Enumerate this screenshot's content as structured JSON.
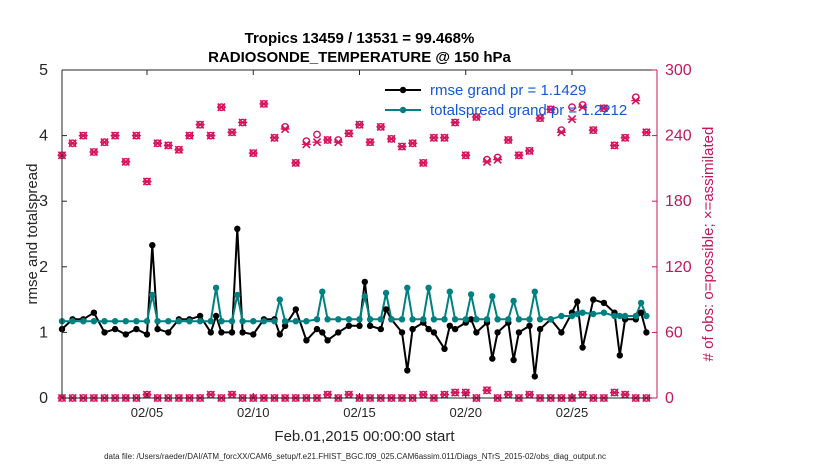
{
  "chart_data": {
    "type": "line",
    "title_line1": "Tropics 13459 / 13531 = 99.468%",
    "title_line2": "RADIOSONDE_TEMPERATURE @ 150 hPa",
    "xlabel": "Feb.01,2015 00:00:00 start",
    "ylabel_left": "rmse and totalspread",
    "ylabel_right": "# of obs: o=possible; ×=assimilated",
    "footer": "data file: /Users/raeder/DAI/ATM_forcXX/CAM6_setup/f.e21.FHIST_BGC.f09_025.CAM6assim.011/Diags_NTrS_2015-02/obs_diag_output.nc",
    "x_ticks": [
      {
        "label": "02/05",
        "day": 5
      },
      {
        "label": "02/10",
        "day": 10
      },
      {
        "label": "02/15",
        "day": 15
      },
      {
        "label": "02/20",
        "day": 20
      },
      {
        "label": "02/25",
        "day": 25
      }
    ],
    "xlim": [
      1,
      29
    ],
    "ylim_left": [
      0,
      5
    ],
    "y_ticks_left": [
      "0",
      "1",
      "2",
      "3",
      "4",
      "5"
    ],
    "ylim_right": [
      0,
      300
    ],
    "y_ticks_right": [
      "0",
      "60",
      "120",
      "180",
      "240",
      "300"
    ],
    "colors": {
      "rmse": "#000000",
      "spread": "#008080",
      "obs": "#d6105a",
      "legend_text": "#1457d6",
      "right_axis": "#c2185b"
    },
    "series": [
      {
        "name": "rmse grand pr = 1.1429",
        "axis": "left",
        "style": "line-dot",
        "x": [
          1,
          1.5,
          2,
          2.5,
          3,
          3.5,
          4,
          4.5,
          5,
          5.25,
          5.5,
          6,
          6.5,
          7,
          7.5,
          8,
          8.25,
          8.5,
          9,
          9.25,
          9.5,
          10,
          10.5,
          11,
          11.25,
          11.5,
          12,
          12.5,
          13,
          13.25,
          13.5,
          14,
          14.5,
          15,
          15.25,
          15.5,
          16,
          16.25,
          16.5,
          17,
          17.25,
          17.5,
          18,
          18.25,
          18.5,
          19,
          19.25,
          19.5,
          20,
          20.25,
          20.5,
          21,
          21.25,
          21.5,
          22,
          22.25,
          22.5,
          23,
          23.25,
          23.5,
          24,
          24.5,
          25,
          25.25,
          25.5,
          26,
          26.5,
          27,
          27.25,
          27.5,
          28,
          28.25,
          28.5
        ],
        "y": [
          1.05,
          1.2,
          1.2,
          1.3,
          1.0,
          1.05,
          0.97,
          1.05,
          0.97,
          2.33,
          1.05,
          1.0,
          1.2,
          1.2,
          1.25,
          1.0,
          1.25,
          1.0,
          1.0,
          2.58,
          1.0,
          0.97,
          1.2,
          1.2,
          0.97,
          1.1,
          1.35,
          0.88,
          1.05,
          1.0,
          0.88,
          1.0,
          1.1,
          1.1,
          1.77,
          1.1,
          1.05,
          1.35,
          1.2,
          1.0,
          0.42,
          1.05,
          1.15,
          1.05,
          1.0,
          0.75,
          1.1,
          1.05,
          1.15,
          1.2,
          1.0,
          1.15,
          0.6,
          1.0,
          1.15,
          0.58,
          1.0,
          1.1,
          0.33,
          1.05,
          1.2,
          1.0,
          1.3,
          1.47,
          0.77,
          1.5,
          1.45,
          1.3,
          0.65,
          1.2,
          1.2,
          1.3,
          1.0
        ]
      },
      {
        "name": "totalspread grand pr = 1.2212",
        "axis": "left",
        "style": "line-dot",
        "x": [
          1,
          1.5,
          2,
          2.5,
          3,
          3.5,
          4,
          4.5,
          5,
          5.25,
          5.5,
          6,
          6.5,
          7,
          7.5,
          8,
          8.25,
          8.5,
          9,
          9.25,
          9.5,
          10,
          10.5,
          11,
          11.25,
          11.5,
          12,
          12.5,
          13,
          13.25,
          13.5,
          14,
          14.5,
          15,
          15.25,
          15.5,
          16,
          16.25,
          16.5,
          17,
          17.25,
          17.5,
          18,
          18.25,
          18.5,
          19,
          19.25,
          19.5,
          20,
          20.25,
          20.5,
          21,
          21.25,
          21.5,
          22,
          22.25,
          22.5,
          23,
          23.25,
          23.5,
          24,
          24.5,
          25,
          25.25,
          25.5,
          26,
          26.5,
          27,
          27.25,
          27.5,
          28,
          28.25,
          28.5
        ],
        "y": [
          1.17,
          1.17,
          1.17,
          1.17,
          1.17,
          1.17,
          1.17,
          1.17,
          1.17,
          1.57,
          1.17,
          1.17,
          1.17,
          1.17,
          1.17,
          1.17,
          1.68,
          1.17,
          1.17,
          1.57,
          1.17,
          1.17,
          1.17,
          1.17,
          1.5,
          1.17,
          1.17,
          1.17,
          1.2,
          1.62,
          1.2,
          1.2,
          1.2,
          1.2,
          1.55,
          1.2,
          1.2,
          1.6,
          1.2,
          1.2,
          1.68,
          1.2,
          1.2,
          1.68,
          1.2,
          1.2,
          1.62,
          1.2,
          1.2,
          1.58,
          1.2,
          1.2,
          1.55,
          1.2,
          1.2,
          1.48,
          1.2,
          1.2,
          1.62,
          1.2,
          1.2,
          1.25,
          1.25,
          1.28,
          1.3,
          1.28,
          1.3,
          1.25,
          1.25,
          1.25,
          1.25,
          1.45,
          1.25
        ]
      },
      {
        "name": "obs possible",
        "axis": "right",
        "style": "marker-o",
        "x": [
          1,
          1.5,
          2,
          2.5,
          3,
          3.5,
          4,
          4.5,
          5,
          5.5,
          6,
          6.5,
          7,
          7.5,
          8,
          8.5,
          9,
          9.5,
          10,
          10.5,
          11,
          11.5,
          12,
          12.5,
          13,
          13.5,
          14,
          14.5,
          15,
          15.5,
          16,
          16.5,
          17,
          17.5,
          18,
          18.5,
          19,
          19.5,
          20,
          20.5,
          21,
          21.5,
          22,
          22.5,
          23,
          23.5,
          24,
          24.5,
          25,
          25.5,
          26,
          26.5,
          27,
          27.5,
          28,
          28.5
        ],
        "y": [
          222,
          233,
          240,
          225,
          234,
          240,
          216,
          240,
          198,
          233,
          231,
          227,
          240,
          250,
          240,
          266,
          243,
          252,
          224,
          269,
          238,
          248,
          215,
          235,
          241,
          236,
          236,
          242,
          250,
          234,
          248,
          237,
          230,
          233,
          215,
          238,
          238,
          252,
          222,
          257,
          218,
          220,
          236,
          222,
          226,
          256,
          264,
          245,
          266,
          268,
          245,
          265,
          231,
          238,
          275,
          243
        ]
      },
      {
        "name": "obs assimilated",
        "axis": "right",
        "style": "marker-x",
        "x": [
          1,
          1.5,
          2,
          2.5,
          3,
          3.5,
          4,
          4.5,
          5,
          5.5,
          6,
          6.5,
          7,
          7.5,
          8,
          8.5,
          9,
          9.5,
          10,
          10.5,
          11,
          11.5,
          12,
          12.5,
          13,
          13.5,
          14,
          14.5,
          15,
          15.5,
          16,
          16.5,
          17,
          17.5,
          18,
          18.5,
          19,
          19.5,
          20,
          20.5,
          21,
          21.5,
          22,
          22.5,
          23,
          23.5,
          24,
          24.5,
          25,
          25.5,
          26,
          26.5,
          27,
          27.5,
          28,
          28.5
        ],
        "y": [
          222,
          233,
          240,
          225,
          234,
          240,
          216,
          240,
          198,
          233,
          231,
          227,
          240,
          250,
          240,
          266,
          243,
          252,
          224,
          269,
          238,
          246,
          215,
          232,
          234,
          236,
          234,
          242,
          250,
          234,
          248,
          237,
          230,
          233,
          215,
          238,
          238,
          252,
          222,
          257,
          216,
          218,
          236,
          222,
          226,
          256,
          264,
          243,
          255,
          266,
          245,
          265,
          231,
          238,
          272,
          243
        ]
      },
      {
        "name": "obs possible near zero",
        "axis": "right",
        "style": "marker-o",
        "x": [
          1,
          1.5,
          2,
          2.5,
          3,
          3.5,
          4,
          4.5,
          5,
          5.5,
          6,
          6.5,
          7,
          7.5,
          8,
          8.5,
          9,
          9.5,
          10,
          10.5,
          11,
          11.5,
          12,
          12.5,
          13,
          13.5,
          14,
          14.5,
          15,
          15.5,
          16,
          16.5,
          17,
          17.5,
          18,
          18.5,
          19,
          19.5,
          20,
          20.5,
          21,
          21.5,
          22,
          22.5,
          23,
          23.5,
          24,
          24.5,
          25,
          25.5,
          26,
          26.5,
          27,
          27.5,
          28,
          28.5
        ],
        "y": [
          0,
          0,
          0,
          0,
          0,
          0,
          0,
          0,
          3,
          0,
          0,
          0,
          0,
          0,
          3,
          0,
          3,
          0,
          0,
          0,
          0,
          0,
          0,
          0,
          0,
          3,
          0,
          3,
          0,
          0,
          0,
          0,
          0,
          0,
          3,
          0,
          3,
          5,
          5,
          0,
          7,
          0,
          3,
          0,
          3,
          0,
          0,
          0,
          0,
          3,
          0,
          0,
          5,
          3,
          0,
          0
        ]
      },
      {
        "name": "obs assimilated near zero",
        "axis": "right",
        "style": "marker-x",
        "x": [
          1,
          1.5,
          2,
          2.5,
          3,
          3.5,
          4,
          4.5,
          5,
          5.5,
          6,
          6.5,
          7,
          7.5,
          8,
          8.5,
          9,
          9.5,
          10,
          10.5,
          11,
          11.5,
          12,
          12.5,
          13,
          13.5,
          14,
          14.5,
          15,
          15.5,
          16,
          16.5,
          17,
          17.5,
          18,
          18.5,
          19,
          19.5,
          20,
          20.5,
          21,
          21.5,
          22,
          22.5,
          23,
          23.5,
          24,
          24.5,
          25,
          25.5,
          26,
          26.5,
          27,
          27.5,
          28,
          28.5
        ],
        "y": [
          0,
          0,
          0,
          0,
          0,
          0,
          0,
          0,
          3,
          0,
          0,
          0,
          0,
          0,
          3,
          0,
          3,
          0,
          0,
          0,
          0,
          0,
          0,
          0,
          0,
          3,
          0,
          3,
          0,
          0,
          0,
          0,
          0,
          0,
          3,
          0,
          3,
          5,
          5,
          0,
          7,
          0,
          3,
          0,
          3,
          0,
          0,
          0,
          0,
          3,
          0,
          0,
          5,
          3,
          0,
          0
        ]
      }
    ],
    "legend": [
      {
        "label": "rmse grand pr = 1.1429",
        "series": "rmse"
      },
      {
        "label": "totalspread grand pr = 1.2212",
        "series": "spread"
      }
    ],
    "legend_position": "top-right",
    "grid": false
  }
}
